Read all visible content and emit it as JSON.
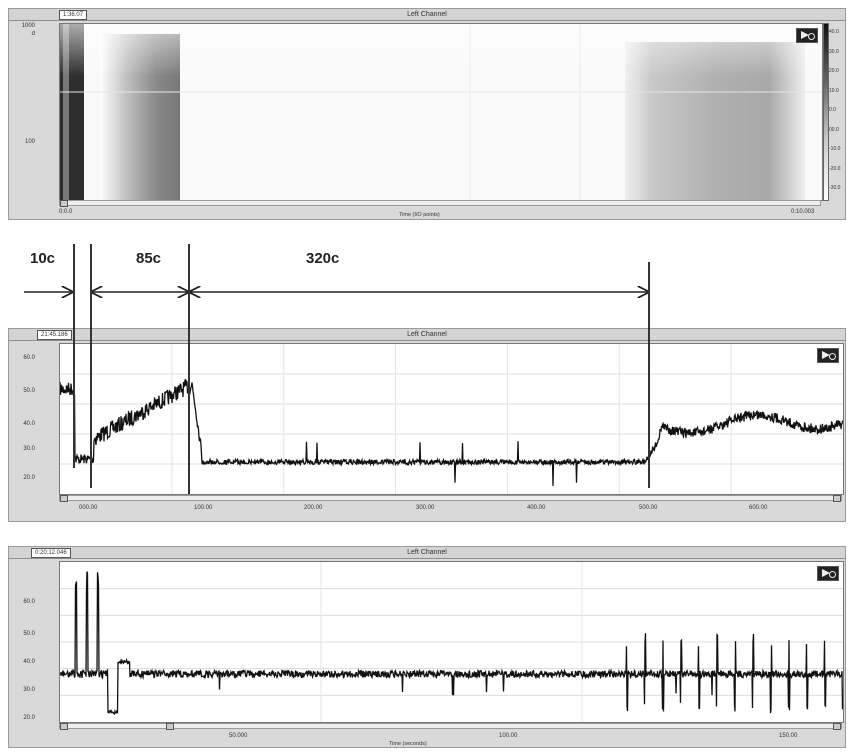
{
  "spectrogram": {
    "title": "Left Channel",
    "time_box": "1:36.07",
    "y_labels": [
      "1000",
      "100"
    ],
    "y_unit": "d",
    "x_start": "0:0.0",
    "x_end": "0:10.003",
    "x_title": "Time (I/O points)",
    "colorbar_labels": [
      "40.0",
      "30.0",
      "20.0",
      "10.0",
      "0.0",
      "00.0",
      "-10.0",
      "-20.0",
      "-30.0"
    ]
  },
  "annotations": {
    "labels": [
      "10c",
      "85c",
      "320c"
    ]
  },
  "trace2": {
    "title": "Left Channel",
    "time_box": "21:45.186",
    "y_labels": [
      "60.0",
      "50.0",
      "40.0",
      "30.0",
      "20.0"
    ],
    "x_labels": [
      "000.00",
      "100.00",
      "200.00",
      "300.00",
      "400.00",
      "500.00",
      "600.00",
      "700.00"
    ]
  },
  "trace3": {
    "title": "Left Channel",
    "time_box": "0:20:12.046",
    "y_labels": [
      "60.0",
      "50.0",
      "40.0",
      "30.0",
      "20.0"
    ],
    "x_labels": [
      "50.000",
      "100.00",
      "150.00"
    ],
    "x_title": "Time (seconds)"
  },
  "colors": {
    "panel": "#d9d9d9",
    "trace": "#111111",
    "accent": "#000000"
  }
}
